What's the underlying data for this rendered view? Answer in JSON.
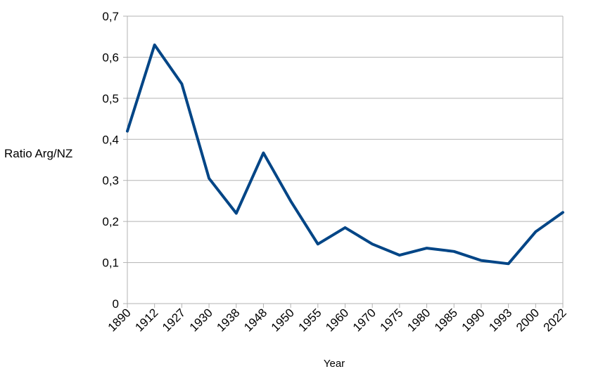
{
  "chart_data": {
    "type": "line",
    "title": "",
    "xlabel": "Year",
    "ylabel": "Ratio Arg/NZ",
    "categories": [
      "1890",
      "1912",
      "1927",
      "1930",
      "1938",
      "1948",
      "1950",
      "1955",
      "1960",
      "1970",
      "1975",
      "1980",
      "1985",
      "1990",
      "1993",
      "2000",
      "2022"
    ],
    "series": [
      {
        "name": "",
        "color": "#004586",
        "values": [
          0.42,
          0.63,
          0.535,
          0.305,
          0.22,
          0.367,
          0.25,
          0.145,
          0.185,
          0.145,
          0.118,
          0.135,
          0.127,
          0.105,
          0.097,
          0.175,
          0.222
        ]
      }
    ],
    "ylim": [
      0,
      0.7
    ],
    "yticks": [
      0,
      0.1,
      0.2,
      0.3,
      0.4,
      0.5,
      0.6,
      0.7
    ],
    "ytick_labels": [
      "0",
      "0,1",
      "0,2",
      "0,3",
      "0,4",
      "0,5",
      "0,6",
      "0,7"
    ],
    "grid": true,
    "legend": "none"
  }
}
